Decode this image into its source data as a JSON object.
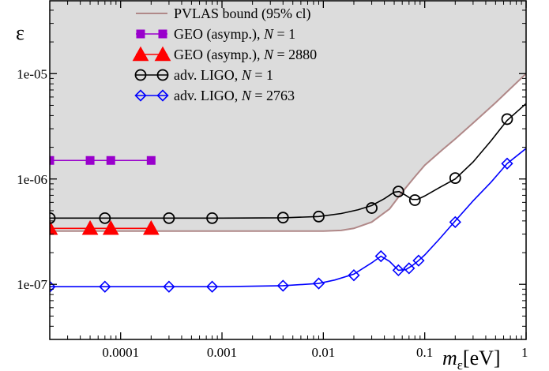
{
  "chart_data": {
    "type": "line",
    "x_scale": "log",
    "y_scale": "log",
    "xlim": [
      2e-05,
      1
    ],
    "ylim": [
      3e-08,
      5e-05
    ],
    "ylabel": "ε",
    "xlabel": {
      "main": "m",
      "sub": "ε",
      "unit": "[eV]"
    },
    "x_ticks": [
      {
        "value": 0.0001,
        "label": "0.0001"
      },
      {
        "value": 0.001,
        "label": "0.001"
      },
      {
        "value": 0.01,
        "label": "0.01"
      },
      {
        "value": 0.1,
        "label": "0.1"
      },
      {
        "value": 1,
        "label": "1"
      }
    ],
    "y_ticks": [
      {
        "value": 1e-07,
        "label": "1e-07"
      },
      {
        "value": 1e-06,
        "label": "1e-06"
      },
      {
        "value": 1e-05,
        "label": "1e-05"
      }
    ],
    "grid": false,
    "legend_position": "top-center",
    "series": [
      {
        "name": "PVLAS bound (95% cl)",
        "kind": "area-boundary",
        "color": "#b08888",
        "fill": "#dcdcdc",
        "x": [
          2e-05,
          0.0001,
          0.001,
          0.01,
          0.015,
          0.02,
          0.03,
          0.045,
          0.06,
          0.08,
          0.1,
          0.15,
          0.2,
          0.3,
          0.5,
          1
        ],
        "y": [
          3.2e-07,
          3.2e-07,
          3.2e-07,
          3.2e-07,
          3.25e-07,
          3.4e-07,
          3.9e-07,
          5.2e-07,
          7.5e-07,
          1.05e-06,
          1.35e-06,
          1.9e-06,
          2.4e-06,
          3.4e-06,
          5.3e-06,
          1e-05
        ]
      },
      {
        "name_parts": {
          "prefix": "GEO (asymp.), ",
          "var": "N",
          "suffix": " = 1"
        },
        "marker": "square",
        "color": "#9900cc",
        "x": [
          2e-05,
          5e-05,
          8e-05,
          0.0002
        ],
        "y": [
          1.5e-06,
          1.5e-06,
          1.5e-06,
          1.5e-06
        ]
      },
      {
        "name_parts": {
          "prefix": "GEO (asymp.), ",
          "var": "N",
          "suffix": " = 2880"
        },
        "marker": "triangle",
        "color": "#ff0000",
        "x": [
          2e-05,
          5e-05,
          8e-05,
          0.0002
        ],
        "y": [
          3.4e-07,
          3.4e-07,
          3.4e-07,
          3.4e-07
        ]
      },
      {
        "name_parts": {
          "prefix": "adv. LIGO, ",
          "var": "N",
          "suffix": " = 1"
        },
        "marker": "circle",
        "color": "#000000",
        "curve_x": [
          2e-05,
          0.0001,
          0.001,
          0.004,
          0.009,
          0.015,
          0.022,
          0.03,
          0.04,
          0.05,
          0.056,
          0.065,
          0.075,
          0.085,
          0.1,
          0.14,
          0.2,
          0.3,
          0.45,
          0.65,
          1
        ],
        "curve_y": [
          4.25e-07,
          4.25e-07,
          4.25e-07,
          4.28e-07,
          4.4e-07,
          4.7e-07,
          5.1e-07,
          5.6e-07,
          6.5e-07,
          7.5e-07,
          7.6e-07,
          7e-07,
          6.4e-07,
          6.4e-07,
          6.9e-07,
          8.3e-07,
          1e-06,
          1.45e-06,
          2.3e-06,
          3.6e-06,
          5.2e-06
        ],
        "x": [
          2e-05,
          7e-05,
          0.0003,
          0.0008,
          0.004,
          0.009,
          0.03,
          0.055,
          0.08,
          0.2,
          0.65
        ],
        "y": [
          4.25e-07,
          4.25e-07,
          4.25e-07,
          4.25e-07,
          4.3e-07,
          4.4e-07,
          5.3e-07,
          7.6e-07,
          6.3e-07,
          1.02e-06,
          3.7e-06
        ]
      },
      {
        "name_parts": {
          "prefix": "adv. LIGO, ",
          "var": "N",
          "suffix": " = 2763"
        },
        "marker": "diamond",
        "color": "#0000ff",
        "curve_x": [
          2e-05,
          0.0001,
          0.001,
          0.004,
          0.009,
          0.013,
          0.02,
          0.03,
          0.037,
          0.045,
          0.055,
          0.065,
          0.075,
          0.085,
          0.1,
          0.14,
          0.2,
          0.3,
          0.45,
          0.65,
          1
        ],
        "curve_y": [
          9.5e-08,
          9.5e-08,
          9.5e-08,
          9.7e-08,
          1.02e-07,
          1.1e-07,
          1.25e-07,
          1.6e-07,
          1.85e-07,
          1.65e-07,
          1.36e-07,
          1.38e-07,
          1.5e-07,
          1.65e-07,
          1.9e-07,
          2.7e-07,
          4e-07,
          6.2e-07,
          9.3e-07,
          1.4e-06,
          1.95e-06
        ],
        "x": [
          2e-05,
          7e-05,
          0.0003,
          0.0008,
          0.004,
          0.009,
          0.02,
          0.037,
          0.055,
          0.07,
          0.087,
          0.2,
          0.65
        ],
        "y": [
          9.5e-08,
          9.5e-08,
          9.5e-08,
          9.5e-08,
          9.7e-08,
          1.02e-07,
          1.22e-07,
          1.85e-07,
          1.36e-07,
          1.42e-07,
          1.68e-07,
          3.9e-07,
          1.4e-06
        ]
      }
    ]
  }
}
